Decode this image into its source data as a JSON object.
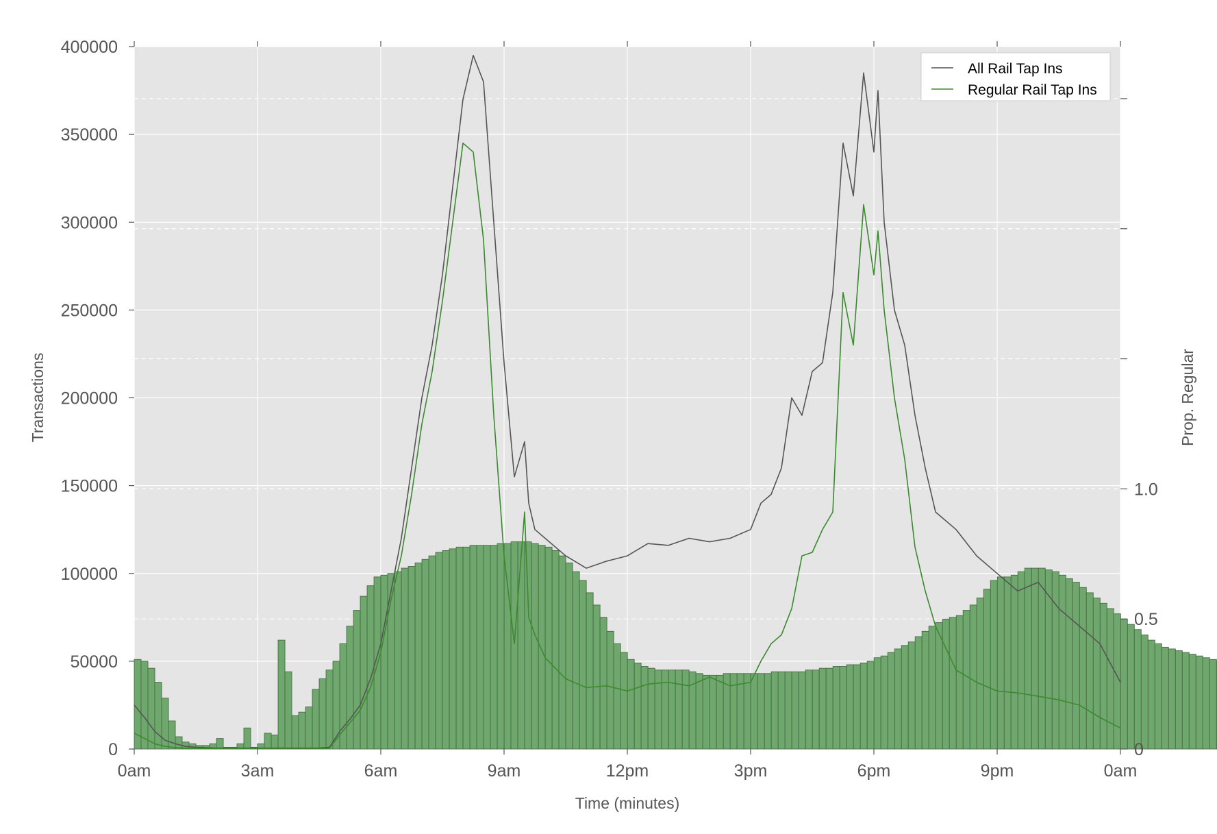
{
  "chart_data": {
    "type": "bar",
    "title": "",
    "xlabel": "Time (minutes)",
    "ylabel": "Transactions",
    "y2label": "Prop. Regular",
    "x_range_hours": [
      0,
      24
    ],
    "x_ticks": [
      {
        "hour": 0,
        "label": "0am"
      },
      {
        "hour": 3,
        "label": "3am"
      },
      {
        "hour": 6,
        "label": "6am"
      },
      {
        "hour": 9,
        "label": "9am"
      },
      {
        "hour": 12,
        "label": "12pm"
      },
      {
        "hour": 15,
        "label": "3pm"
      },
      {
        "hour": 18,
        "label": "6pm"
      },
      {
        "hour": 21,
        "label": "9pm"
      },
      {
        "hour": 24,
        "label": "0am"
      }
    ],
    "ylim": [
      0,
      400000
    ],
    "y_ticks": [
      {
        "value": 0,
        "label": "0"
      },
      {
        "value": 50000,
        "label": "50000"
      },
      {
        "value": 100000,
        "label": "100000"
      },
      {
        "value": 150000,
        "label": "150000"
      },
      {
        "value": 200000,
        "label": "200000"
      },
      {
        "value": 250000,
        "label": "250000"
      },
      {
        "value": 300000,
        "label": "300000"
      },
      {
        "value": 350000,
        "label": "350000"
      },
      {
        "value": 400000,
        "label": "400000"
      }
    ],
    "y2lim": [
      0,
      2.7
    ],
    "y2_ticks": [
      {
        "value": 0,
        "label": "0"
      },
      {
        "value": 0.5,
        "label": "0.5"
      },
      {
        "value": 1.0,
        "label": "1.0"
      },
      {
        "value": 1.5,
        "label": ""
      },
      {
        "value": 2.0,
        "label": ""
      },
      {
        "value": 2.5,
        "label": ""
      }
    ],
    "grid": true,
    "legend_position": "top-right",
    "colors": {
      "plot_background": "#e5e5e5",
      "grid": "#ffffff",
      "bar_fill": "#6fa86c",
      "bar_edge": "#4a6a48",
      "all_rail": "#555555",
      "regular_rail": "#3a8a2e",
      "text": "#555555"
    },
    "bars": {
      "name": "Prop. Regular (bars, plotted on the Transactions scale)",
      "bin_hours": 0.1667,
      "values": [
        51000,
        50000,
        46000,
        38000,
        29000,
        16000,
        7000,
        4000,
        3000,
        2000,
        2000,
        3000,
        6000,
        1000,
        1000,
        3000,
        12000,
        1000,
        3000,
        9000,
        8000,
        62000,
        44000,
        19000,
        21000,
        24000,
        34000,
        40000,
        45000,
        50000,
        60000,
        70000,
        79000,
        87000,
        93000,
        98000,
        99000,
        100000,
        101000,
        103000,
        104000,
        106000,
        108000,
        110000,
        112000,
        113000,
        114000,
        115000,
        115000,
        116000,
        116000,
        116000,
        116000,
        117000,
        117000,
        118000,
        118000,
        118000,
        117000,
        116000,
        115000,
        113000,
        110000,
        106000,
        101000,
        96000,
        89000,
        82000,
        75000,
        67000,
        60000,
        55000,
        51000,
        49000,
        47000,
        46000,
        45000,
        45000,
        45000,
        45000,
        45000,
        44000,
        43000,
        42000,
        42000,
        42000,
        43000,
        43000,
        43000,
        43000,
        43000,
        43000,
        43000,
        44000,
        44000,
        44000,
        44000,
        44000,
        45000,
        45000,
        46000,
        46000,
        47000,
        47000,
        48000,
        48000,
        49000,
        50000,
        52000,
        53000,
        55000,
        57000,
        59000,
        61000,
        64000,
        67000,
        70000,
        72000,
        74000,
        75000,
        76000,
        79000,
        82000,
        86000,
        91000,
        96000,
        98000,
        98000,
        99000,
        101000,
        103000,
        103000,
        103000,
        102000,
        101000,
        99000,
        97000,
        95000,
        92000,
        89000,
        86000,
        83000,
        80000,
        77000,
        74000,
        71000,
        68000,
        65000,
        62000,
        60000,
        58000,
        57000,
        56000,
        55000,
        54000,
        53000,
        52000,
        51000,
        50000,
        49000,
        48000,
        47000,
        47000,
        47000,
        46000,
        46000,
        46000,
        48000,
        48000,
        47000,
        45000,
        45000,
        44000,
        44000
      ]
    },
    "series": [
      {
        "name": "All Rail Tap Ins",
        "x_hours": [
          0,
          0.25,
          0.5,
          0.75,
          1,
          1.25,
          1.5,
          2,
          2.5,
          3,
          3.5,
          4,
          4.5,
          4.75,
          5,
          5.25,
          5.5,
          5.75,
          6,
          6.25,
          6.5,
          6.75,
          7,
          7.25,
          7.5,
          7.75,
          8,
          8.25,
          8.5,
          8.75,
          9,
          9.25,
          9.5,
          9.6,
          9.75,
          10,
          10.5,
          11,
          11.5,
          12,
          12.5,
          13,
          13.5,
          14,
          14.5,
          15,
          15.25,
          15.5,
          15.75,
          16,
          16.25,
          16.5,
          16.75,
          17,
          17.25,
          17.5,
          17.75,
          18,
          18.1,
          18.25,
          18.5,
          18.75,
          19,
          19.25,
          19.5,
          20,
          20.5,
          21,
          21.5,
          22,
          22.5,
          23,
          23.5,
          24
        ],
        "values": [
          25000,
          18000,
          10000,
          5000,
          3000,
          1500,
          1000,
          500,
          500,
          500,
          500,
          500,
          500,
          1000,
          10000,
          17000,
          25000,
          40000,
          60000,
          90000,
          120000,
          160000,
          200000,
          230000,
          270000,
          320000,
          370000,
          395000,
          380000,
          300000,
          220000,
          155000,
          175000,
          140000,
          125000,
          120000,
          110000,
          103000,
          107000,
          110000,
          117000,
          116000,
          120000,
          118000,
          120000,
          125000,
          140000,
          145000,
          160000,
          200000,
          190000,
          215000,
          220000,
          260000,
          345000,
          315000,
          385000,
          340000,
          375000,
          300000,
          250000,
          230000,
          190000,
          160000,
          135000,
          125000,
          110000,
          100000,
          90000,
          95000,
          80000,
          70000,
          60000,
          38000
        ]
      },
      {
        "name": "Regular Rail Tap Ins",
        "x_hours": [
          0,
          0.25,
          0.5,
          0.75,
          1,
          1.25,
          1.5,
          2,
          2.5,
          3,
          3.5,
          4,
          4.5,
          4.75,
          5,
          5.25,
          5.5,
          5.75,
          6,
          6.25,
          6.5,
          6.75,
          7,
          7.25,
          7.5,
          7.75,
          8,
          8.25,
          8.5,
          8.75,
          9,
          9.25,
          9.5,
          9.6,
          9.75,
          10,
          10.5,
          11,
          11.5,
          12,
          12.5,
          13,
          13.5,
          14,
          14.5,
          15,
          15.25,
          15.5,
          15.75,
          16,
          16.25,
          16.5,
          16.75,
          17,
          17.25,
          17.5,
          17.75,
          18,
          18.1,
          18.25,
          18.5,
          18.75,
          19,
          19.25,
          19.5,
          20,
          20.5,
          21,
          21.5,
          22,
          22.5,
          23,
          23.5,
          24
        ],
        "values": [
          9000,
          6000,
          3000,
          1500,
          800,
          500,
          300,
          200,
          200,
          200,
          200,
          200,
          200,
          500,
          8000,
          15000,
          22000,
          35000,
          55000,
          85000,
          110000,
          145000,
          185000,
          215000,
          255000,
          300000,
          345000,
          340000,
          290000,
          190000,
          110000,
          60000,
          135000,
          75000,
          65000,
          52000,
          40000,
          35000,
          36000,
          33000,
          37000,
          38000,
          36000,
          41000,
          36000,
          38000,
          50000,
          60000,
          65000,
          80000,
          110000,
          112000,
          125000,
          135000,
          260000,
          230000,
          310000,
          270000,
          295000,
          250000,
          200000,
          165000,
          115000,
          90000,
          70000,
          45000,
          38000,
          33000,
          32000,
          30000,
          28000,
          25000,
          18000,
          12000
        ]
      }
    ]
  }
}
